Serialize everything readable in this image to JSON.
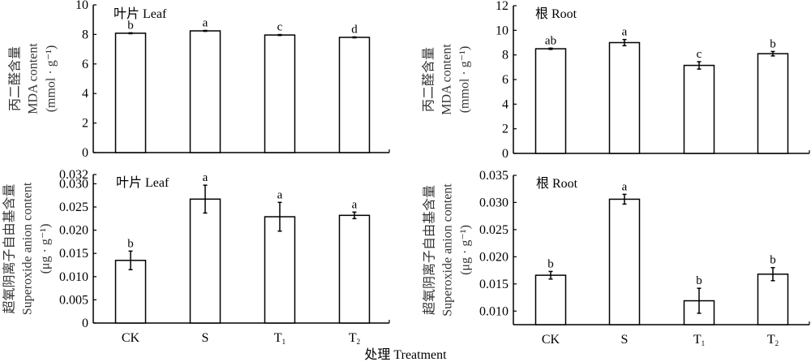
{
  "chart_data": [
    {
      "type": "bar",
      "panel": "top-left",
      "title": "叶片 Leaf",
      "ylabel_lines": [
        "丙二醛含量",
        "MDA content",
        "(mmol · g⁻¹)"
      ],
      "xlabel": "",
      "categories": [
        "CK",
        "S",
        "T1",
        "T2"
      ],
      "values": [
        8.08,
        8.24,
        7.96,
        7.8
      ],
      "errors": [
        0.03,
        0.03,
        0.03,
        0.03
      ],
      "significance": [
        "b",
        "a",
        "c",
        "d"
      ],
      "ylim": [
        0,
        10
      ],
      "yticks": [
        0,
        2,
        4,
        6,
        8,
        10
      ],
      "ytick_labels": [
        "0",
        "2",
        "4",
        "6",
        "8",
        "10"
      ],
      "grid": false
    },
    {
      "type": "bar",
      "panel": "top-right",
      "title": "根 Root",
      "ylabel_lines": [
        "丙二醛含量",
        "MDA content",
        "(mmol · g⁻¹)"
      ],
      "xlabel": "",
      "categories": [
        "CK",
        "S",
        "T1",
        "T2"
      ],
      "values": [
        8.5,
        9.0,
        7.15,
        8.1
      ],
      "errors": [
        0.05,
        0.25,
        0.3,
        0.18
      ],
      "significance": [
        "ab",
        "a",
        "c",
        "b"
      ],
      "ylim": [
        0,
        12
      ],
      "yticks": [
        0,
        2,
        4,
        6,
        8,
        10,
        12
      ],
      "ytick_labels": [
        "0",
        "2",
        "4",
        "6",
        "8",
        "10",
        "12"
      ],
      "grid": false
    },
    {
      "type": "bar",
      "panel": "bottom-left",
      "title": "叶片 Leaf",
      "ylabel_lines": [
        "超氧阴离子自由基含量",
        "Superoxide anion content",
        "(μg · g⁻¹)"
      ],
      "xlabel": "",
      "categories": [
        "CK",
        "S",
        "T1",
        "T2"
      ],
      "values": [
        0.0135,
        0.0267,
        0.0229,
        0.0232
      ],
      "errors": [
        0.002,
        0.003,
        0.0031,
        0.0007
      ],
      "significance": [
        "b",
        "a",
        "a",
        "a"
      ],
      "ylim": [
        0,
        0.032
      ],
      "yticks": [
        0,
        0.005,
        0.01,
        0.015,
        0.02,
        0.025,
        0.03,
        0.032
      ],
      "ytick_labels": [
        "0",
        "0.005",
        "0.010",
        "0.015",
        "0.020",
        "0.025",
        "0.030",
        "0.032"
      ],
      "grid": false
    },
    {
      "type": "bar",
      "panel": "bottom-right",
      "title": "根 Root",
      "ylabel_lines": [
        "超氧阴离子自由基含量",
        "Superoxide anion content",
        "(μg · g⁻¹)"
      ],
      "xlabel": "",
      "categories": [
        "CK",
        "S",
        "T1",
        "T2"
      ],
      "values": [
        0.0166,
        0.0306,
        0.0119,
        0.0168
      ],
      "errors": [
        0.0007,
        0.0009,
        0.0023,
        0.0012
      ],
      "significance": [
        "b",
        "a",
        "b",
        "b"
      ],
      "ylim": [
        0.0075,
        0.035
      ],
      "yticks": [
        0.01,
        0.015,
        0.02,
        0.025,
        0.03,
        0.035
      ],
      "ytick_labels": [
        "0.010",
        "0.015",
        "0.020",
        "0.025",
        "0.030",
        "0.035"
      ],
      "grid": false
    }
  ],
  "category_display": [
    {
      "base": "CK",
      "sub": ""
    },
    {
      "base": "S",
      "sub": ""
    },
    {
      "base": "T",
      "sub": "1"
    },
    {
      "base": "T",
      "sub": "2"
    }
  ],
  "shared_xlabel": "处理 Treatment",
  "colors": {
    "bar_fill": "#ffffff",
    "bar_stroke": "#000000",
    "axis": "#000000",
    "ylabel": "#333333"
  }
}
